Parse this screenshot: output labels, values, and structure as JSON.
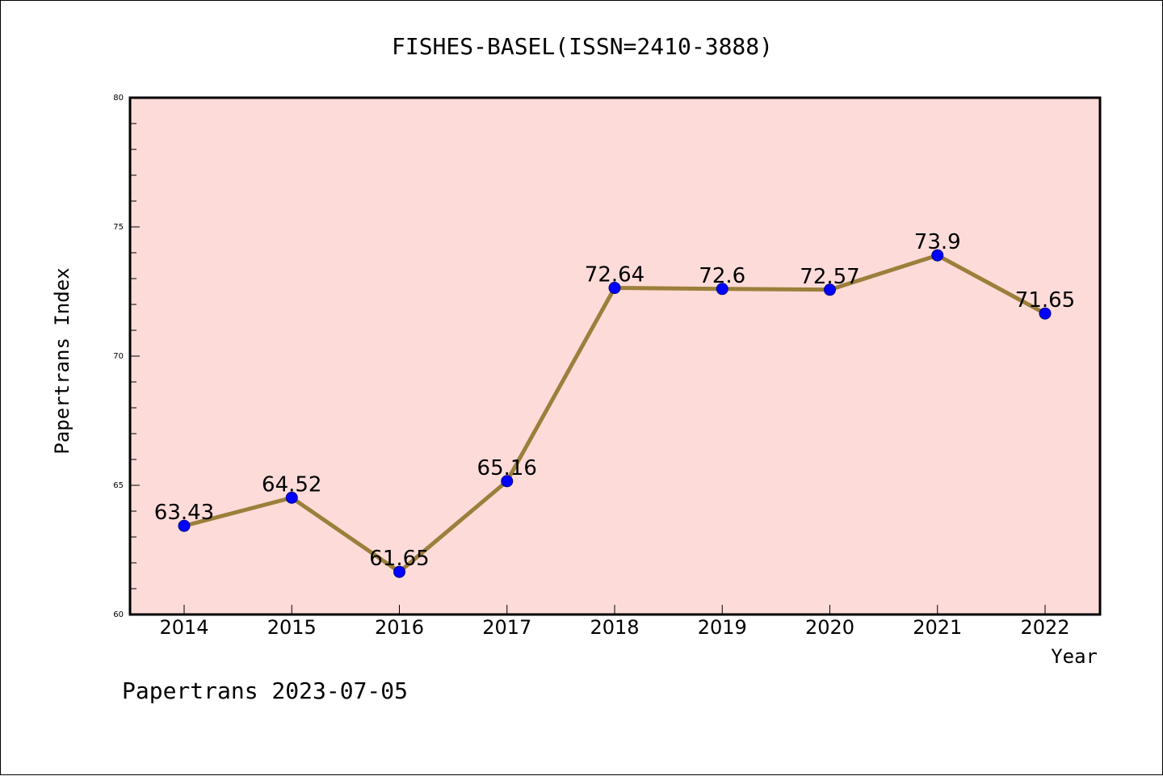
{
  "chart_data": {
    "type": "line",
    "title": "FISHES-BASEL(ISSN=2410-3888)",
    "xlabel": "Year",
    "ylabel": "Papertrans Index",
    "categories": [
      "2014",
      "2015",
      "2016",
      "2017",
      "2018",
      "2019",
      "2020",
      "2021",
      "2022"
    ],
    "series": [
      {
        "values": [
          63.43,
          64.52,
          61.65,
          65.16,
          72.64,
          72.6,
          72.57,
          73.9,
          71.65
        ],
        "labels": [
          "63.43",
          "64.52",
          "61.65",
          "65.16",
          "72.64",
          "72.6",
          "72.57",
          "73.9",
          "71.65"
        ]
      }
    ],
    "ylim": [
      60,
      80
    ],
    "yticks": [
      "60",
      "65",
      "70",
      "75",
      "80"
    ],
    "grid": false,
    "colors": {
      "plot_background": "#fddbd8",
      "line": "#9b7f3b",
      "marker": "#0000ff"
    }
  },
  "footer": {
    "credit": "Papertrans 2023-07-05"
  }
}
